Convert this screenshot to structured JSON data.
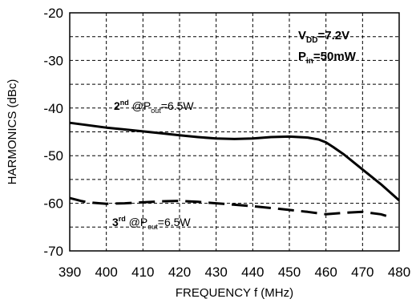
{
  "chart_data": {
    "type": "line",
    "title": "",
    "xlabel": "FREQUENCY f (MHz)",
    "ylabel": "HARMONICS (dBc)",
    "xlim": [
      390,
      480
    ],
    "ylim": [
      -70,
      -20
    ],
    "x_ticks": [
      "390",
      "400",
      "410",
      "420",
      "430",
      "440",
      "450",
      "460",
      "470",
      "480"
    ],
    "y_ticks": [
      "-20",
      "-30",
      "-40",
      "-50",
      "-60",
      "-70"
    ],
    "grid": "dashed",
    "conditions": {
      "vdd": {
        "main": "V",
        "sub": "DD",
        "rest": "=7.2V"
      },
      "pin": {
        "main": "P",
        "sub": "in",
        "rest": "=50mW"
      }
    },
    "series": [
      {
        "style": "solid",
        "label": {
          "num": "2",
          "sup": "nd",
          "at": " @P",
          "sub": "out",
          "rest": "=6.5W"
        },
        "points": [
          [
            390,
            -43.1
          ],
          [
            395,
            -43.6
          ],
          [
            400,
            -44.1
          ],
          [
            405,
            -44.5
          ],
          [
            410,
            -44.9
          ],
          [
            415,
            -45.3
          ],
          [
            420,
            -45.7
          ],
          [
            425,
            -46.1
          ],
          [
            430,
            -46.4
          ],
          [
            435,
            -46.5
          ],
          [
            440,
            -46.4
          ],
          [
            445,
            -46.1
          ],
          [
            450,
            -46.0
          ],
          [
            455,
            -46.2
          ],
          [
            458,
            -46.6
          ],
          [
            460,
            -47.2
          ],
          [
            462,
            -48.2
          ],
          [
            465,
            -49.8
          ],
          [
            470,
            -52.9
          ],
          [
            475,
            -56.0
          ],
          [
            480,
            -59.4
          ]
        ]
      },
      {
        "style": "dashed",
        "label": {
          "num": "3",
          "sup": "rd",
          "at": " @P",
          "sub": "out",
          "rest": "=6.5W"
        },
        "points": [
          [
            390,
            -58.9
          ],
          [
            393,
            -59.5
          ],
          [
            395,
            -59.8
          ],
          [
            400,
            -60.1
          ],
          [
            405,
            -60.0
          ],
          [
            410,
            -59.8
          ],
          [
            415,
            -59.6
          ],
          [
            420,
            -59.5
          ],
          [
            425,
            -59.7
          ],
          [
            430,
            -60.0
          ],
          [
            435,
            -60.3
          ],
          [
            440,
            -60.6
          ],
          [
            445,
            -61.0
          ],
          [
            450,
            -61.4
          ],
          [
            455,
            -61.8
          ],
          [
            460,
            -62.3
          ],
          [
            465,
            -62.0
          ],
          [
            470,
            -61.8
          ],
          [
            475,
            -62.3
          ],
          [
            478,
            -63.0
          ]
        ]
      }
    ]
  }
}
